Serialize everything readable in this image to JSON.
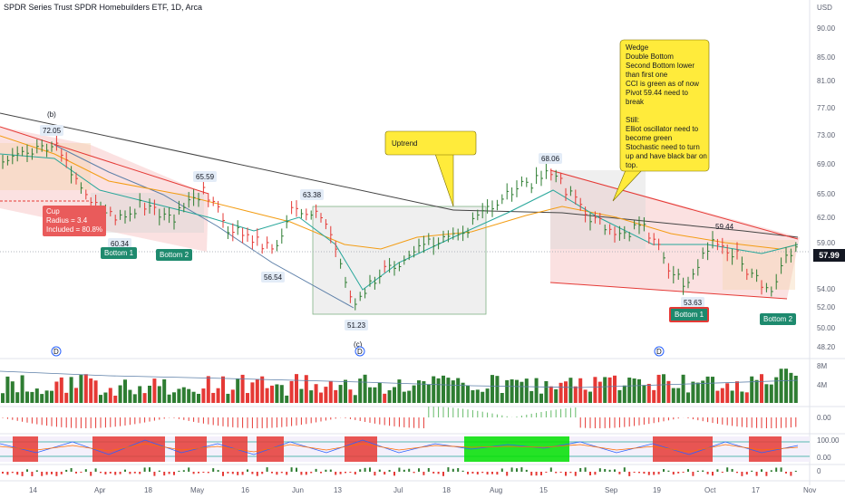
{
  "header": {
    "title": "SPDR Series Trust SPDR Homebuilders ETF, 1D, Arca",
    "currency": "USD"
  },
  "last_price": "57.99",
  "price_axis": [
    "90.00",
    "85.00",
    "81.00",
    "77.00",
    "73.00",
    "69.00",
    "65.00",
    "62.00",
    "59.00",
    "57.99",
    "54.00",
    "52.00",
    "50.00",
    "48.20"
  ],
  "volume_axis": [
    "8M",
    "4M"
  ],
  "cci_axis": [
    "0.00"
  ],
  "stoch_axis": [
    "100.00",
    "0.00"
  ],
  "osc_axis": [
    "0"
  ],
  "time_axis": [
    "14",
    "Apr",
    "18",
    "May",
    "16",
    "Jun",
    "13",
    "Jul",
    "18",
    "Aug",
    "15",
    "Sep",
    "19",
    "Oct",
    "17",
    "Nov"
  ],
  "annotations": {
    "wave_b": "(b)",
    "wave_c": "(c)",
    "price_72": "72.05",
    "price_60": "60.34",
    "price_65": "65.59",
    "price_63": "63.38",
    "price_56": "56.54",
    "price_51": "51.23",
    "price_68": "68.06",
    "price_59": "59.44",
    "price_53": "53.63",
    "bottom1_left": "Bottom 1",
    "bottom2_left": "Bottom 2",
    "bottom1_right": "Bottom 1",
    "bottom2_right": "Bottom 2",
    "cup": "Cup\nRadius = 3.4\nIncluded = 80.8%",
    "uptrend": "Uptrend",
    "wedge_note": "Wedge\nDouble Bottom\nSecond Bottom lower\nthan first one\nCCI is green as of now\nPivot 59.44 need to\nbreak\n\nStill:\nElliot oscillator need to\nbecome green\nStochastic need to turn\nup and have black bar on\ntop.",
    "dividend_marker": "D"
  },
  "colors": {
    "up": "#2e7d32",
    "down": "#e53935",
    "callout_yellow": "#ffeb3b",
    "teal_badge": "#1e8a6e",
    "red_zone": "#f7c9c9",
    "green_zone": "#00e000"
  }
}
